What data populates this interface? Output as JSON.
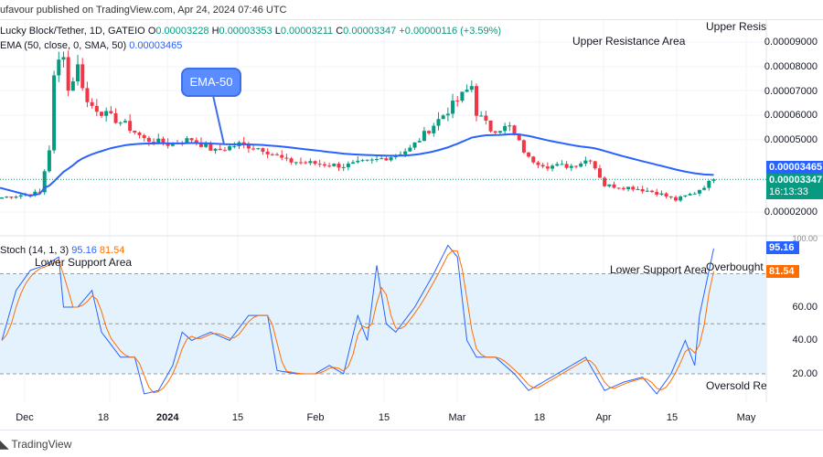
{
  "header": {
    "published": "ufavour published on TradingView.com, Apr 24, 2024 07:46 UTC"
  },
  "legend": {
    "symbol": "Lucky Block/Tether, 1D, GATEIO",
    "o_label": "O",
    "o": "0.00003228",
    "h_label": "H",
    "h": "0.00003353",
    "l_label": "L",
    "l": "0.00003211",
    "c_label": "C",
    "c": "0.00003347",
    "change": "+0.00000116 (+3.59%)",
    "ema_label": "EMA (50, close, 0, SMA, 50)",
    "ema_value": "0.00003465"
  },
  "annotations": {
    "upper_resist": "Upper Resist",
    "upper_resistance_area": "Upper Resistance Area",
    "ema_callout": "EMA-50",
    "lower_support_left": "Lower Support Area",
    "lower_support_right": "Lower Support Area",
    "overbought": "Overbought",
    "oversold": "Oversold Reg"
  },
  "price_axis": {
    "ticks": [
      "0.00009000",
      "0.00008000",
      "0.00007000",
      "0.00006000",
      "0.00005000",
      "0.00002000"
    ],
    "ema_tag": "0.00003465",
    "price_tag": "0.00003347",
    "countdown": "16:13:33"
  },
  "stoch": {
    "label": "Stoch (14, 1, 3)",
    "k": "95.16",
    "d": "81.54",
    "ticks": [
      "60.00",
      "40.00",
      "20.00"
    ],
    "top_tick": "100.00",
    "k_tag": "95.16",
    "d_tag": "81.54"
  },
  "time_axis": [
    "Dec",
    "18",
    "2024",
    "15",
    "Feb",
    "15",
    "Mar",
    "18",
    "Apr",
    "15",
    "May"
  ],
  "footer": {
    "brand": "TradingView"
  },
  "colors": {
    "up": "#089981",
    "down": "#f23645",
    "ema": "#2962ff",
    "k": "#2962ff",
    "d": "#ff6d00",
    "band": "#e3f2fd"
  },
  "chart_data": {
    "type": "candlestick",
    "price_unit": "1e-5",
    "close_keypoints": [
      [
        0,
        2.6
      ],
      [
        8,
        2.8
      ],
      [
        10,
        4.6
      ],
      [
        11,
        7.5
      ],
      [
        12,
        8.2
      ],
      [
        13,
        8.6
      ],
      [
        14,
        7.0
      ],
      [
        16,
        8.0
      ],
      [
        18,
        6.5
      ],
      [
        22,
        6.0
      ],
      [
        26,
        5.6
      ],
      [
        30,
        5.0
      ],
      [
        35,
        4.8
      ],
      [
        40,
        5.0
      ],
      [
        45,
        4.5
      ],
      [
        50,
        4.8
      ],
      [
        55,
        4.6
      ],
      [
        60,
        4.1
      ],
      [
        66,
        4.0
      ],
      [
        72,
        3.9
      ],
      [
        78,
        4.1
      ],
      [
        82,
        4.3
      ],
      [
        86,
        4.6
      ],
      [
        90,
        5.4
      ],
      [
        94,
        6.2
      ],
      [
        97,
        6.8
      ],
      [
        99,
        7.2
      ],
      [
        100,
        6.1
      ],
      [
        103,
        5.4
      ],
      [
        107,
        5.5
      ],
      [
        111,
        4.2
      ],
      [
        115,
        3.9
      ],
      [
        120,
        3.9
      ],
      [
        124,
        4.2
      ],
      [
        127,
        3.1
      ],
      [
        133,
        3.0
      ],
      [
        138,
        2.8
      ],
      [
        142,
        2.5
      ],
      [
        146,
        2.8
      ],
      [
        150,
        3.347
      ]
    ],
    "stoch_k_keypoints": [
      [
        0,
        40
      ],
      [
        3,
        70
      ],
      [
        6,
        82
      ],
      [
        9,
        85
      ],
      [
        12,
        90
      ],
      [
        13,
        60
      ],
      [
        16,
        60
      ],
      [
        19,
        70
      ],
      [
        21,
        45
      ],
      [
        25,
        30
      ],
      [
        28,
        30
      ],
      [
        30,
        8
      ],
      [
        33,
        10
      ],
      [
        36,
        25
      ],
      [
        38,
        45
      ],
      [
        40,
        40
      ],
      [
        44,
        45
      ],
      [
        48,
        40
      ],
      [
        52,
        55
      ],
      [
        56,
        55
      ],
      [
        58,
        22
      ],
      [
        62,
        20
      ],
      [
        66,
        20
      ],
      [
        69,
        25
      ],
      [
        72,
        20
      ],
      [
        75,
        55
      ],
      [
        77,
        40
      ],
      [
        79,
        85
      ],
      [
        81,
        50
      ],
      [
        83,
        45
      ],
      [
        87,
        60
      ],
      [
        91,
        80
      ],
      [
        94,
        97
      ],
      [
        96,
        90
      ],
      [
        98,
        40
      ],
      [
        100,
        30
      ],
      [
        104,
        30
      ],
      [
        108,
        20
      ],
      [
        111,
        10
      ],
      [
        114,
        15
      ],
      [
        117,
        20
      ],
      [
        120,
        25
      ],
      [
        123,
        30
      ],
      [
        127,
        10
      ],
      [
        131,
        15
      ],
      [
        135,
        18
      ],
      [
        138,
        8
      ],
      [
        141,
        20
      ],
      [
        144,
        40
      ],
      [
        146,
        25
      ],
      [
        147,
        55
      ],
      [
        150,
        95.16
      ]
    ],
    "ema_period": 50,
    "stoch_levels": [
      20,
      50,
      80
    ]
  }
}
